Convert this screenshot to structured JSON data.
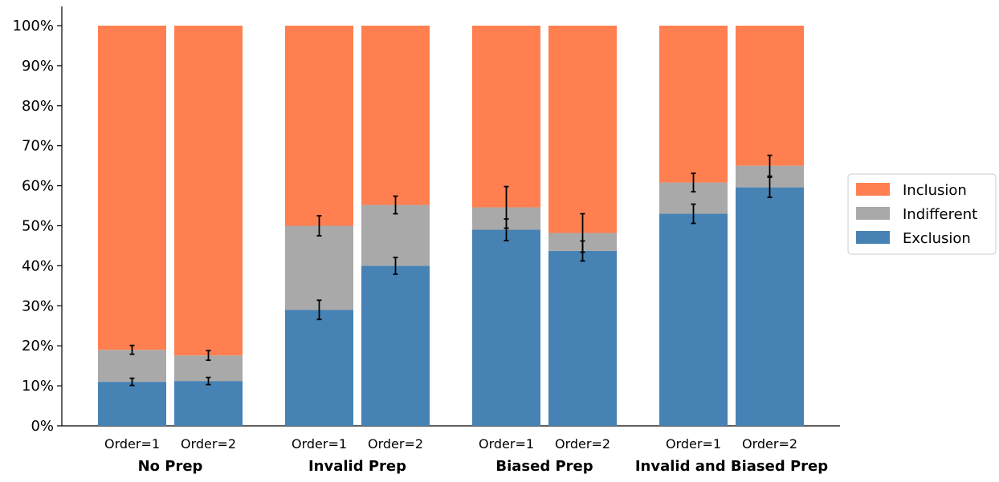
{
  "chart_data": {
    "type": "bar",
    "stacked": true,
    "title": "",
    "xlabel": "",
    "ylabel": "",
    "ylim": [
      0,
      1.05
    ],
    "y_ticks": [
      "0%",
      "10%",
      "20%",
      "30%",
      "40%",
      "50%",
      "60%",
      "70%",
      "80%",
      "90%",
      "100%"
    ],
    "grid": false,
    "legend_position": "right",
    "colors": {
      "Exclusion": "#4682b4",
      "Indifferent": "#a9a9a9",
      "Inclusion": "#ff7f50",
      "error_bar": "#000000"
    },
    "legend": [
      "Inclusion",
      "Indifferent",
      "Exclusion"
    ],
    "groups": [
      {
        "name": "No Prep",
        "bars": [
          {
            "label": "Order=1",
            "exclusion": 0.11,
            "indifferent": 0.08,
            "inclusion": 0.81,
            "err_exclusion": 0.009,
            "err_cumulative": 0.011
          },
          {
            "label": "Order=2",
            "exclusion": 0.112,
            "indifferent": 0.064,
            "inclusion": 0.824,
            "err_exclusion": 0.009,
            "err_cumulative": 0.012
          }
        ]
      },
      {
        "name": "Invalid Prep",
        "bars": [
          {
            "label": "Order=1",
            "exclusion": 0.29,
            "indifferent": 0.21,
            "inclusion": 0.5,
            "err_exclusion": 0.024,
            "err_cumulative": 0.025
          },
          {
            "label": "Order=2",
            "exclusion": 0.4,
            "indifferent": 0.152,
            "inclusion": 0.448,
            "err_exclusion": 0.021,
            "err_cumulative": 0.022
          }
        ]
      },
      {
        "name": "Biased Prep",
        "bars": [
          {
            "label": "Order=1",
            "exclusion": 0.49,
            "indifferent": 0.056,
            "inclusion": 0.454,
            "err_exclusion": 0.027,
            "err_cumulative": 0.052
          },
          {
            "label": "Order=2",
            "exclusion": 0.437,
            "indifferent": 0.045,
            "inclusion": 0.518,
            "err_exclusion": 0.025,
            "err_cumulative": 0.048
          }
        ]
      },
      {
        "name": "Invalid and Biased Prep",
        "bars": [
          {
            "label": "Order=1",
            "exclusion": 0.53,
            "indifferent": 0.078,
            "inclusion": 0.392,
            "err_exclusion": 0.024,
            "err_cumulative": 0.023
          },
          {
            "label": "Order=2",
            "exclusion": 0.596,
            "indifferent": 0.054,
            "inclusion": 0.35,
            "err_exclusion": 0.025,
            "err_cumulative": 0.026
          }
        ]
      }
    ]
  }
}
